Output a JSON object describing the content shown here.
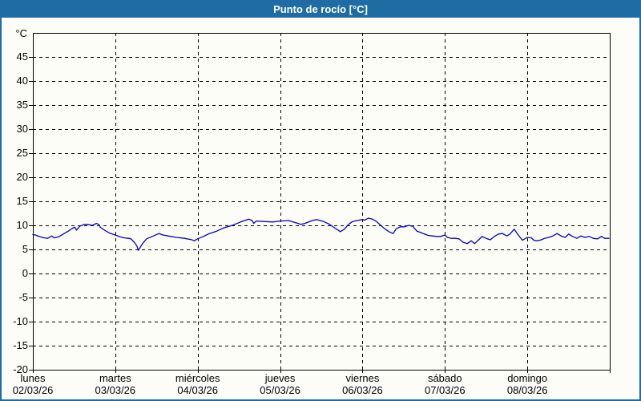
{
  "window": {
    "title": "Punto de rocío [°C]"
  },
  "colors": {
    "titlebar_bg": "#1e6ca3",
    "page_border": "#1e6ca3",
    "page_bg": "#fdfdf8",
    "title_text": "#ffffff",
    "grid": "#000000",
    "axis_text": "#000000",
    "line": "#0000c8"
  },
  "chart_data": {
    "type": "line",
    "title": "Punto de rocío [°C]",
    "y_unit_label": "°C",
    "ylim": [
      -20,
      50
    ],
    "y_tick_step": 5,
    "y_tick_labels": [
      45,
      40,
      35,
      30,
      25,
      20,
      15,
      10,
      5,
      0,
      -5,
      -10,
      -15,
      -20
    ],
    "x_days": [
      {
        "name": "lunes",
        "date": "02/03/26"
      },
      {
        "name": "martes",
        "date": "03/03/26"
      },
      {
        "name": "miércoles",
        "date": "04/03/26"
      },
      {
        "name": "jueves",
        "date": "05/03/26"
      },
      {
        "name": "viernes",
        "date": "06/03/26"
      },
      {
        "name": "sábado",
        "date": "07/03/26"
      },
      {
        "name": "domingo",
        "date": "08/03/26"
      }
    ],
    "grid": "dashed horizontal every 5°C, dashed vertical at each day boundary",
    "legend_position": "none",
    "series": [
      {
        "name": "Punto de rocío",
        "color": "#0000c8",
        "x_unit": "days from lunes 02/03/26 00:00",
        "points": [
          [
            0.0,
            8.1
          ],
          [
            0.03,
            8.0
          ],
          [
            0.09,
            7.6
          ],
          [
            0.14,
            7.4
          ],
          [
            0.18,
            7.3
          ],
          [
            0.23,
            7.8
          ],
          [
            0.26,
            7.4
          ],
          [
            0.31,
            7.6
          ],
          [
            0.38,
            8.3
          ],
          [
            0.43,
            8.8
          ],
          [
            0.48,
            9.4
          ],
          [
            0.51,
            9.6
          ],
          [
            0.53,
            9.0
          ],
          [
            0.57,
            9.8
          ],
          [
            0.62,
            10.2
          ],
          [
            0.67,
            10.2
          ],
          [
            0.72,
            10.0
          ],
          [
            0.77,
            10.4
          ],
          [
            0.8,
            10.2
          ],
          [
            0.82,
            9.6
          ],
          [
            0.87,
            9.0
          ],
          [
            0.93,
            8.4
          ],
          [
            1.0,
            8.0
          ],
          [
            1.06,
            7.6
          ],
          [
            1.11,
            7.4
          ],
          [
            1.16,
            7.3
          ],
          [
            1.19,
            7.2
          ],
          [
            1.23,
            6.5
          ],
          [
            1.26,
            5.8
          ],
          [
            1.28,
            4.8
          ],
          [
            1.33,
            6.2
          ],
          [
            1.38,
            7.2
          ],
          [
            1.45,
            7.7
          ],
          [
            1.53,
            8.3
          ],
          [
            1.58,
            8.0
          ],
          [
            1.64,
            7.8
          ],
          [
            1.74,
            7.5
          ],
          [
            1.84,
            7.3
          ],
          [
            1.93,
            7.0
          ],
          [
            1.96,
            6.8
          ],
          [
            2.0,
            7.2
          ],
          [
            2.07,
            7.7
          ],
          [
            2.13,
            8.2
          ],
          [
            2.23,
            8.8
          ],
          [
            2.32,
            9.5
          ],
          [
            2.42,
            10.0
          ],
          [
            2.52,
            10.7
          ],
          [
            2.57,
            11.0
          ],
          [
            2.62,
            11.3
          ],
          [
            2.66,
            11.0
          ],
          [
            2.68,
            10.4
          ],
          [
            2.71,
            10.9
          ],
          [
            2.81,
            10.8
          ],
          [
            2.91,
            10.7
          ],
          [
            3.0,
            10.9
          ],
          [
            3.1,
            11.0
          ],
          [
            3.2,
            10.5
          ],
          [
            3.25,
            10.2
          ],
          [
            3.3,
            10.4
          ],
          [
            3.39,
            11.0
          ],
          [
            3.44,
            11.2
          ],
          [
            3.49,
            11.0
          ],
          [
            3.54,
            10.7
          ],
          [
            3.59,
            10.3
          ],
          [
            3.66,
            9.5
          ],
          [
            3.73,
            8.7
          ],
          [
            3.78,
            9.2
          ],
          [
            3.83,
            10.2
          ],
          [
            3.88,
            10.8
          ],
          [
            3.93,
            11.0
          ],
          [
            4.0,
            11.2
          ],
          [
            4.03,
            11.1
          ],
          [
            4.07,
            11.5
          ],
          [
            4.12,
            11.3
          ],
          [
            4.17,
            10.8
          ],
          [
            4.22,
            10.0
          ],
          [
            4.27,
            9.3
          ],
          [
            4.32,
            8.7
          ],
          [
            4.37,
            8.3
          ],
          [
            4.41,
            9.3
          ],
          [
            4.46,
            9.7
          ],
          [
            4.51,
            9.7
          ],
          [
            4.56,
            10.0
          ],
          [
            4.61,
            9.8
          ],
          [
            4.66,
            8.8
          ],
          [
            4.71,
            8.5
          ],
          [
            4.75,
            8.2
          ],
          [
            4.8,
            7.9
          ],
          [
            4.85,
            7.8
          ],
          [
            4.9,
            7.7
          ],
          [
            4.95,
            7.7
          ],
          [
            5.0,
            8.0
          ],
          [
            5.03,
            7.5
          ],
          [
            5.08,
            7.3
          ],
          [
            5.13,
            7.3
          ],
          [
            5.17,
            7.2
          ],
          [
            5.22,
            6.5
          ],
          [
            5.27,
            6.2
          ],
          [
            5.32,
            6.8
          ],
          [
            5.36,
            6.2
          ],
          [
            5.41,
            7.0
          ],
          [
            5.45,
            7.7
          ],
          [
            5.5,
            7.3
          ],
          [
            5.55,
            7.0
          ],
          [
            5.6,
            7.7
          ],
          [
            5.65,
            8.2
          ],
          [
            5.7,
            8.3
          ],
          [
            5.75,
            7.8
          ],
          [
            5.79,
            8.2
          ],
          [
            5.84,
            9.2
          ],
          [
            5.89,
            8.0
          ],
          [
            5.94,
            6.9
          ],
          [
            6.0,
            7.5
          ],
          [
            6.05,
            7.4
          ],
          [
            6.08,
            6.9
          ],
          [
            6.12,
            6.8
          ],
          [
            6.17,
            7.0
          ],
          [
            6.21,
            7.3
          ],
          [
            6.26,
            7.5
          ],
          [
            6.31,
            7.8
          ],
          [
            6.36,
            8.3
          ],
          [
            6.41,
            7.8
          ],
          [
            6.46,
            7.5
          ],
          [
            6.5,
            8.2
          ],
          [
            6.55,
            7.7
          ],
          [
            6.6,
            7.3
          ],
          [
            6.65,
            7.8
          ],
          [
            6.7,
            7.5
          ],
          [
            6.75,
            7.7
          ],
          [
            6.8,
            7.3
          ],
          [
            6.85,
            7.2
          ],
          [
            6.9,
            7.7
          ],
          [
            6.94,
            7.3
          ],
          [
            6.99,
            7.3
          ]
        ]
      }
    ]
  }
}
